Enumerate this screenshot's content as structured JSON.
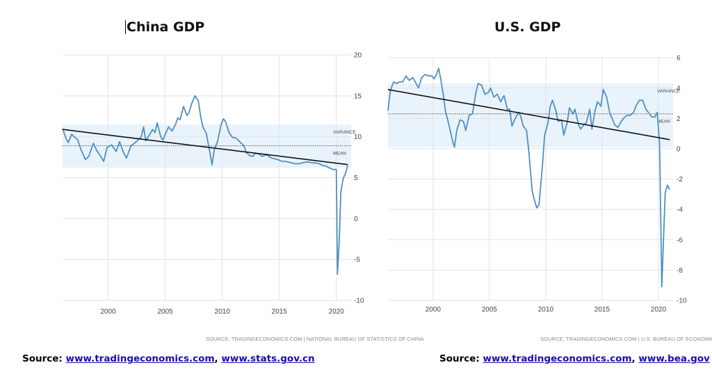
{
  "chart_data": [
    {
      "type": "line",
      "title": "China GDP",
      "xlabel": "",
      "ylabel": "",
      "xlim": [
        1996,
        2021.3
      ],
      "ylim": [
        -10,
        20
      ],
      "x_ticks": [
        "2000",
        "2005",
        "2010",
        "2015",
        "2020"
      ],
      "y_ticks": [
        "20",
        "15",
        "10",
        "5",
        "0",
        "-5",
        "-10"
      ],
      "grid": true,
      "color": "#4f8fc0",
      "series": [
        {
          "values": [
            [
              1996.0,
              11.0
            ],
            [
              1996.3,
              9.8
            ],
            [
              1996.5,
              9.3
            ],
            [
              1996.8,
              10.3
            ],
            [
              1997.0,
              10.0
            ],
            [
              1997.3,
              9.7
            ],
            [
              1997.6,
              8.5
            ],
            [
              1998.0,
              7.2
            ],
            [
              1998.3,
              7.6
            ],
            [
              1998.7,
              9.2
            ],
            [
              1999.0,
              8.3
            ],
            [
              1999.3,
              7.7
            ],
            [
              1999.6,
              7.0
            ],
            [
              1999.9,
              8.7
            ],
            [
              2000.3,
              9.0
            ],
            [
              2000.7,
              8.2
            ],
            [
              2001.0,
              9.4
            ],
            [
              2001.3,
              8.2
            ],
            [
              2001.6,
              7.4
            ],
            [
              2002.0,
              8.9
            ],
            [
              2002.3,
              9.2
            ],
            [
              2002.6,
              9.6
            ],
            [
              2002.9,
              10.0
            ],
            [
              2003.1,
              11.2
            ],
            [
              2003.3,
              9.5
            ],
            [
              2003.6,
              10.2
            ],
            [
              2003.9,
              10.9
            ],
            [
              2004.1,
              10.5
            ],
            [
              2004.3,
              11.7
            ],
            [
              2004.6,
              10.0
            ],
            [
              2004.8,
              9.6
            ],
            [
              2005.0,
              10.3
            ],
            [
              2005.3,
              11.2
            ],
            [
              2005.6,
              10.7
            ],
            [
              2005.9,
              11.5
            ],
            [
              2006.1,
              12.3
            ],
            [
              2006.3,
              12.1
            ],
            [
              2006.6,
              13.7
            ],
            [
              2006.9,
              12.6
            ],
            [
              2007.1,
              13.0
            ],
            [
              2007.3,
              14.0
            ],
            [
              2007.6,
              15.0
            ],
            [
              2007.9,
              14.4
            ],
            [
              2008.1,
              12.5
            ],
            [
              2008.3,
              11.2
            ],
            [
              2008.6,
              10.4
            ],
            [
              2008.9,
              8.2
            ],
            [
              2009.1,
              6.6
            ],
            [
              2009.3,
              8.4
            ],
            [
              2009.6,
              9.5
            ],
            [
              2009.9,
              11.5
            ],
            [
              2010.1,
              12.2
            ],
            [
              2010.3,
              11.8
            ],
            [
              2010.6,
              10.5
            ],
            [
              2010.9,
              9.9
            ],
            [
              2011.1,
              9.9
            ],
            [
              2011.3,
              9.7
            ],
            [
              2011.6,
              9.3
            ],
            [
              2011.9,
              8.9
            ],
            [
              2012.1,
              8.1
            ],
            [
              2012.4,
              7.7
            ],
            [
              2012.7,
              7.6
            ],
            [
              2012.9,
              8.0
            ],
            [
              2013.2,
              7.9
            ],
            [
              2013.5,
              7.6
            ],
            [
              2013.8,
              7.8
            ],
            [
              2014.0,
              7.7
            ],
            [
              2014.3,
              7.4
            ],
            [
              2014.6,
              7.3
            ],
            [
              2014.9,
              7.2
            ],
            [
              2015.2,
              7.0
            ],
            [
              2015.5,
              7.0
            ],
            [
              2015.8,
              6.9
            ],
            [
              2016.1,
              6.8
            ],
            [
              2016.4,
              6.7
            ],
            [
              2016.7,
              6.7
            ],
            [
              2017.0,
              6.8
            ],
            [
              2017.3,
              6.9
            ],
            [
              2017.6,
              6.9
            ],
            [
              2017.9,
              6.8
            ],
            [
              2018.2,
              6.8
            ],
            [
              2018.5,
              6.7
            ],
            [
              2018.8,
              6.5
            ],
            [
              2019.1,
              6.4
            ],
            [
              2019.4,
              6.2
            ],
            [
              2019.7,
              6.0
            ],
            [
              2019.85,
              6.0
            ],
            [
              2020.0,
              6.0
            ],
            [
              2020.1,
              -6.8
            ],
            [
              2020.25,
              -3.0
            ],
            [
              2020.4,
              3.2
            ],
            [
              2020.6,
              4.9
            ],
            [
              2020.8,
              5.5
            ],
            [
              2021.0,
              6.5
            ]
          ]
        }
      ],
      "trend_line": [
        [
          1996.0,
          10.9
        ],
        [
          2021.0,
          6.6
        ]
      ],
      "mean": 8.9,
      "variance_band": [
        6.2,
        11.5
      ],
      "band_labels": {
        "variance": "VARIANCE",
        "mean": "MEAN"
      },
      "credit": "SOURCE: TRADINGECONOMICS.COM | NATIONAL BUREAU OF STATISTICS OF CHINA"
    },
    {
      "type": "line",
      "title": "U.S. GDP",
      "xlabel": "",
      "ylabel": "",
      "xlim": [
        1996,
        2021.3
      ],
      "ylim": [
        -10,
        6
      ],
      "x_ticks": [
        "2000",
        "2005",
        "2010",
        "2015",
        "2020"
      ],
      "y_ticks": [
        "6",
        "4",
        "2",
        "0",
        "-2",
        "-4",
        "-6",
        "-8",
        "-10"
      ],
      "grid": true,
      "color": "#4f8fc0",
      "series": [
        {
          "values": [
            [
              1996.0,
              2.5
            ],
            [
              1996.2,
              3.8
            ],
            [
              1996.5,
              4.4
            ],
            [
              1996.8,
              4.3
            ],
            [
              1997.0,
              4.4
            ],
            [
              1997.3,
              4.4
            ],
            [
              1997.6,
              4.8
            ],
            [
              1997.9,
              4.5
            ],
            [
              1998.2,
              4.7
            ],
            [
              1998.5,
              4.3
            ],
            [
              1998.7,
              4.0
            ],
            [
              1999.0,
              4.7
            ],
            [
              1999.3,
              4.9
            ],
            [
              1999.6,
              4.8
            ],
            [
              1999.9,
              4.8
            ],
            [
              2000.1,
              4.6
            ],
            [
              2000.3,
              4.9
            ],
            [
              2000.5,
              5.3
            ],
            [
              2000.7,
              4.5
            ],
            [
              2000.9,
              3.6
            ],
            [
              2001.1,
              2.5
            ],
            [
              2001.4,
              1.6
            ],
            [
              2001.7,
              0.6
            ],
            [
              2001.9,
              0.1
            ],
            [
              2002.1,
              1.2
            ],
            [
              2002.4,
              1.9
            ],
            [
              2002.7,
              1.8
            ],
            [
              2002.9,
              1.2
            ],
            [
              2003.2,
              2.2
            ],
            [
              2003.5,
              2.3
            ],
            [
              2003.8,
              3.7
            ],
            [
              2004.0,
              4.3
            ],
            [
              2004.3,
              4.2
            ],
            [
              2004.6,
              3.6
            ],
            [
              2004.9,
              3.7
            ],
            [
              2005.1,
              4.0
            ],
            [
              2005.4,
              3.4
            ],
            [
              2005.7,
              3.6
            ],
            [
              2006.0,
              3.1
            ],
            [
              2006.3,
              3.5
            ],
            [
              2006.6,
              2.6
            ],
            [
              2006.8,
              2.6
            ],
            [
              2007.0,
              1.5
            ],
            [
              2007.3,
              2.0
            ],
            [
              2007.6,
              2.4
            ],
            [
              2007.8,
              2.1
            ],
            [
              2008.0,
              1.5
            ],
            [
              2008.3,
              1.2
            ],
            [
              2008.5,
              -0.2
            ],
            [
              2008.8,
              -2.8
            ],
            [
              2009.0,
              -3.4
            ],
            [
              2009.2,
              -3.9
            ],
            [
              2009.4,
              -3.7
            ],
            [
              2009.7,
              -1.2
            ],
            [
              2009.9,
              0.9
            ],
            [
              2010.2,
              1.7
            ],
            [
              2010.4,
              2.8
            ],
            [
              2010.6,
              3.2
            ],
            [
              2010.9,
              2.5
            ],
            [
              2011.1,
              1.8
            ],
            [
              2011.4,
              1.9
            ],
            [
              2011.6,
              0.9
            ],
            [
              2011.9,
              1.7
            ],
            [
              2012.1,
              2.7
            ],
            [
              2012.4,
              2.3
            ],
            [
              2012.6,
              2.6
            ],
            [
              2012.9,
              1.6
            ],
            [
              2013.1,
              1.3
            ],
            [
              2013.4,
              1.6
            ],
            [
              2013.6,
              1.7
            ],
            [
              2013.9,
              2.6
            ],
            [
              2014.1,
              1.3
            ],
            [
              2014.4,
              2.6
            ],
            [
              2014.6,
              3.1
            ],
            [
              2014.9,
              2.8
            ],
            [
              2015.1,
              3.9
            ],
            [
              2015.4,
              3.4
            ],
            [
              2015.7,
              2.3
            ],
            [
              2015.9,
              2.0
            ],
            [
              2016.1,
              1.6
            ],
            [
              2016.4,
              1.4
            ],
            [
              2016.7,
              1.8
            ],
            [
              2016.9,
              2.0
            ],
            [
              2017.2,
              2.2
            ],
            [
              2017.5,
              2.2
            ],
            [
              2017.8,
              2.4
            ],
            [
              2018.0,
              2.8
            ],
            [
              2018.3,
              3.2
            ],
            [
              2018.6,
              3.2
            ],
            [
              2018.9,
              2.6
            ],
            [
              2019.1,
              2.4
            ],
            [
              2019.4,
              2.1
            ],
            [
              2019.7,
              2.1
            ],
            [
              2019.9,
              2.4
            ],
            [
              2020.1,
              0.3
            ],
            [
              2020.3,
              -9.1
            ],
            [
              2020.6,
              -2.9
            ],
            [
              2020.8,
              -2.4
            ],
            [
              2021.0,
              -2.7
            ]
          ]
        }
      ],
      "trend_line": [
        [
          1996.0,
          3.9
        ],
        [
          2021.0,
          0.6
        ]
      ],
      "mean": 2.3,
      "variance_band": [
        0.1,
        4.3
      ],
      "band_labels": {
        "variance": "VARIANCE",
        "mean": "MEAN"
      },
      "credit": "SOURCE: TRADINGECONOMICS.COM | U.S. BUREAU OF ECONOMIC ANALYSIS"
    }
  ],
  "sources": {
    "left": {
      "label": "Source:",
      "link1": "www.tradingeconomics.com",
      "sep": ",",
      "link2": "www.stats.gov.cn"
    },
    "right": {
      "label": "Source:",
      "link1": "www.tradingeconomics.com",
      "sep": ",",
      "link2": "www.bea.gov"
    }
  }
}
